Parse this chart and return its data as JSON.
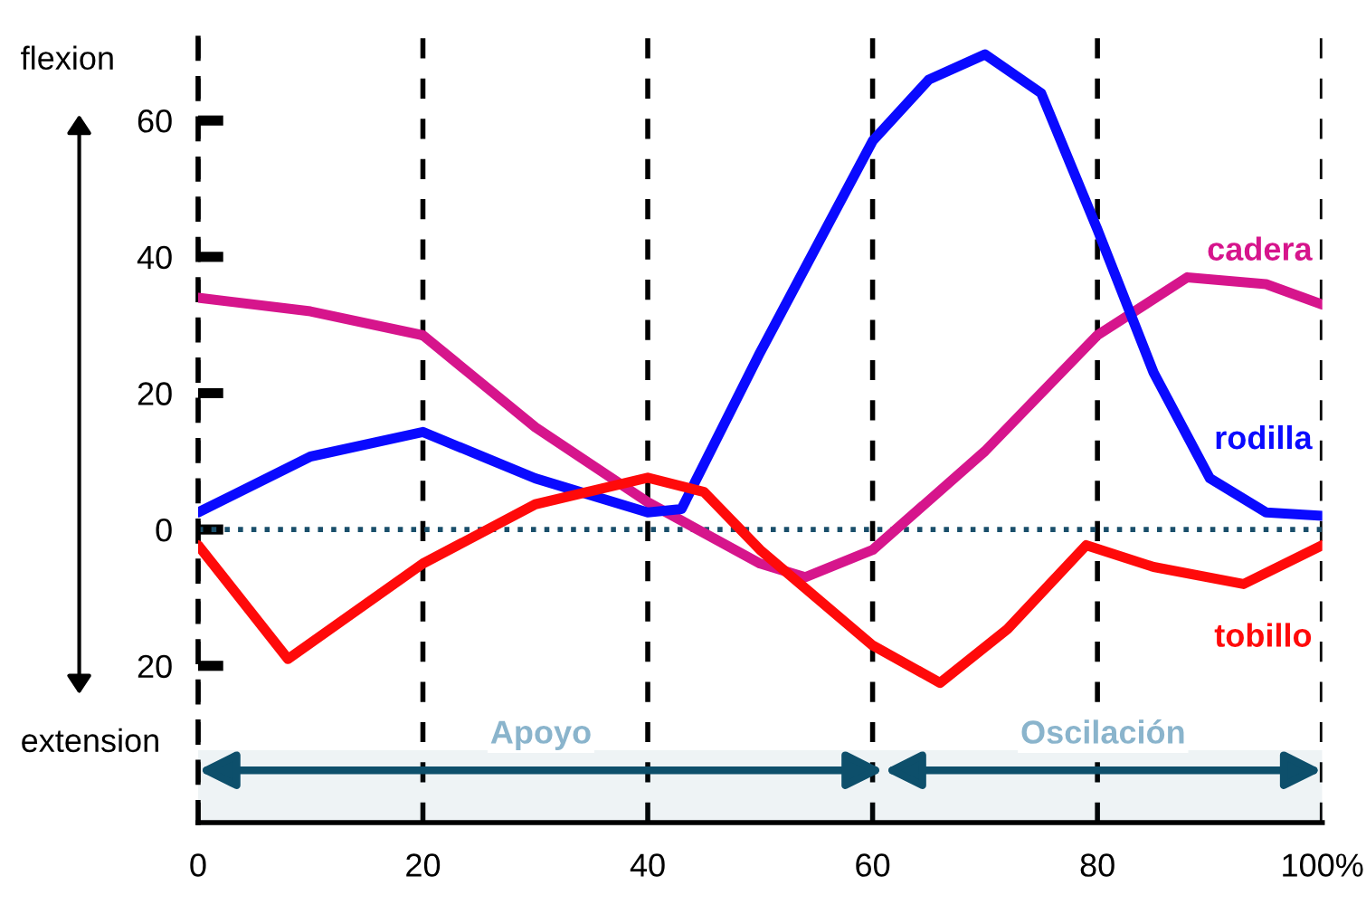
{
  "chart_data": {
    "type": "line",
    "x": [
      0,
      10,
      20,
      30,
      40,
      50,
      54,
      60,
      70,
      80,
      88,
      95,
      100
    ],
    "series": [
      {
        "name": "cadera",
        "color": "#d6158c",
        "values": [
          34,
          32,
          28.5,
          15,
          4,
          -5,
          -7,
          -3,
          11.5,
          28.5,
          37,
          36,
          33
        ]
      },
      {
        "name": "rodilla",
        "color": "#0a0aff",
        "x": [
          0,
          10,
          20,
          30,
          40,
          43,
          50,
          60,
          65,
          70,
          75,
          80,
          85,
          90,
          95,
          100
        ],
        "values": [
          2.5,
          10.7,
          14.3,
          7.5,
          2.5,
          3,
          26,
          57,
          66,
          69.7,
          64,
          44,
          23,
          7.5,
          2.5,
          2
        ]
      },
      {
        "name": "tobillo",
        "color": "#ff0a0a",
        "x": [
          0,
          8,
          20,
          30,
          40,
          45,
          50,
          60,
          66,
          72,
          79,
          85,
          93,
          100
        ],
        "values": [
          -2.3,
          -19,
          -5,
          3.7,
          7.6,
          5.5,
          -3,
          -17,
          -22.5,
          -14.6,
          -2.3,
          -5.5,
          -8,
          -2.3
        ]
      }
    ],
    "xlim": [
      0,
      100
    ],
    "ylim": [
      -43,
      75
    ],
    "xticks": [
      0,
      20,
      40,
      60,
      80,
      {
        "value": 100,
        "label": "100%"
      }
    ],
    "yticks": [
      {
        "value": -20,
        "label": "20"
      },
      0,
      20,
      40,
      60
    ],
    "grid": "x",
    "legend": false,
    "marker": "none",
    "line_style": "solid",
    "ref_lines": [
      {
        "axis": "y",
        "value": 0,
        "color": "#1a4f6b",
        "line_style": "dotted"
      }
    ],
    "bands": [
      {
        "axis": "x",
        "from": 0,
        "to": 61,
        "label": "Apoyo",
        "color": "#0d4f6b"
      },
      {
        "axis": "x",
        "from": 61,
        "to": 100,
        "label": "Oscilación",
        "color": "#0d4f6b"
      }
    ],
    "annotations": [
      "flexion",
      "extension"
    ]
  }
}
